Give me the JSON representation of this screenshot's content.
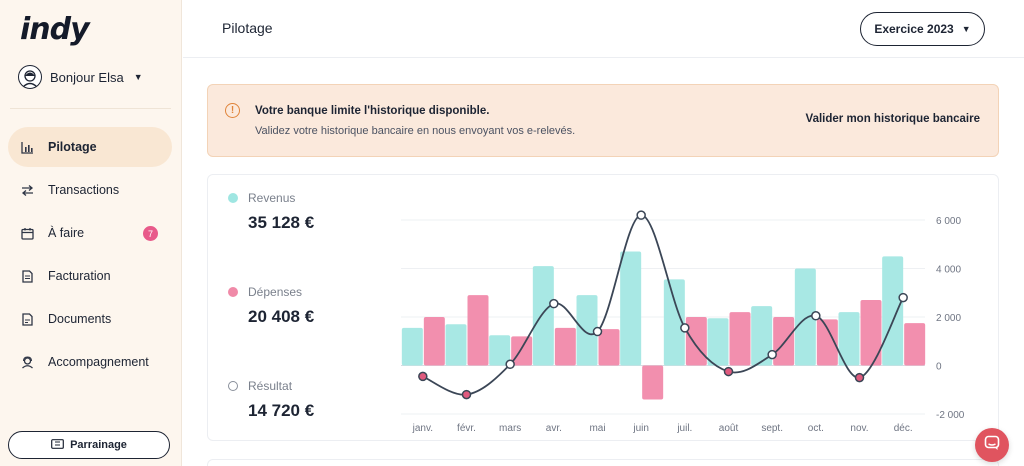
{
  "app": {
    "logo": "indy"
  },
  "sidebar": {
    "user_greeting": "Bonjour Elsa",
    "items": [
      {
        "label": "Pilotage",
        "icon": "bar-chart-icon",
        "active": true
      },
      {
        "label": "Transactions",
        "icon": "arrows-swap-icon"
      },
      {
        "label": "À faire",
        "icon": "calendar-icon",
        "badge": "7"
      },
      {
        "label": "Facturation",
        "icon": "invoice-icon"
      },
      {
        "label": "Documents",
        "icon": "document-icon"
      },
      {
        "label": "Accompagnement",
        "icon": "support-agent-icon"
      }
    ],
    "referral_label": "Parrainage"
  },
  "header": {
    "title": "Pilotage",
    "year_select": "Exercice 2023"
  },
  "alert": {
    "title": "Votre banque limite l'historique disponible.",
    "text": "Validez votre historique bancaire en nous envoyant vos e-relevés.",
    "action": "Valider mon historique bancaire"
  },
  "stats": {
    "revenus": {
      "label": "Revenus",
      "value": "35 128 €",
      "color": "#9fe6e2"
    },
    "depenses": {
      "label": "Dépenses",
      "value": "20 408 €",
      "color": "#f08aa8"
    },
    "resultat": {
      "label": "Résultat",
      "value": "14 720 €"
    }
  },
  "colors": {
    "revenus": "#a8e8e4",
    "depenses": "#f28fae",
    "resultat_line": "#3b4656",
    "negative_point": "#e05a7e",
    "accent_alert": "#e0843a",
    "chat": "#e0545f"
  },
  "chart_data": {
    "type": "bar",
    "categories": [
      "janv.",
      "févr.",
      "mars",
      "avr.",
      "mai",
      "juin",
      "juil.",
      "août",
      "sept.",
      "oct.",
      "nov.",
      "déc."
    ],
    "series": [
      {
        "name": "Revenus",
        "values": [
          1550,
          1700,
          1250,
          4100,
          2900,
          4700,
          3550,
          1950,
          2450,
          4000,
          2200,
          4500
        ]
      },
      {
        "name": "Dépenses",
        "values": [
          2000,
          2900,
          1200,
          1550,
          1500,
          -1400,
          2000,
          2200,
          2000,
          1900,
          2700,
          1750
        ]
      },
      {
        "name": "Résultat",
        "type": "line",
        "values": [
          -450,
          -1200,
          50,
          2550,
          1400,
          6200,
          1550,
          -250,
          450,
          2050,
          -500,
          2800
        ]
      }
    ],
    "yticks": [
      "6 000",
      "4 000",
      "2 000",
      "0",
      "-2 000"
    ],
    "ytick_values": [
      6000,
      4000,
      2000,
      0,
      -2000
    ],
    "ylim": [
      -2000,
      6000
    ],
    "grid": true
  }
}
